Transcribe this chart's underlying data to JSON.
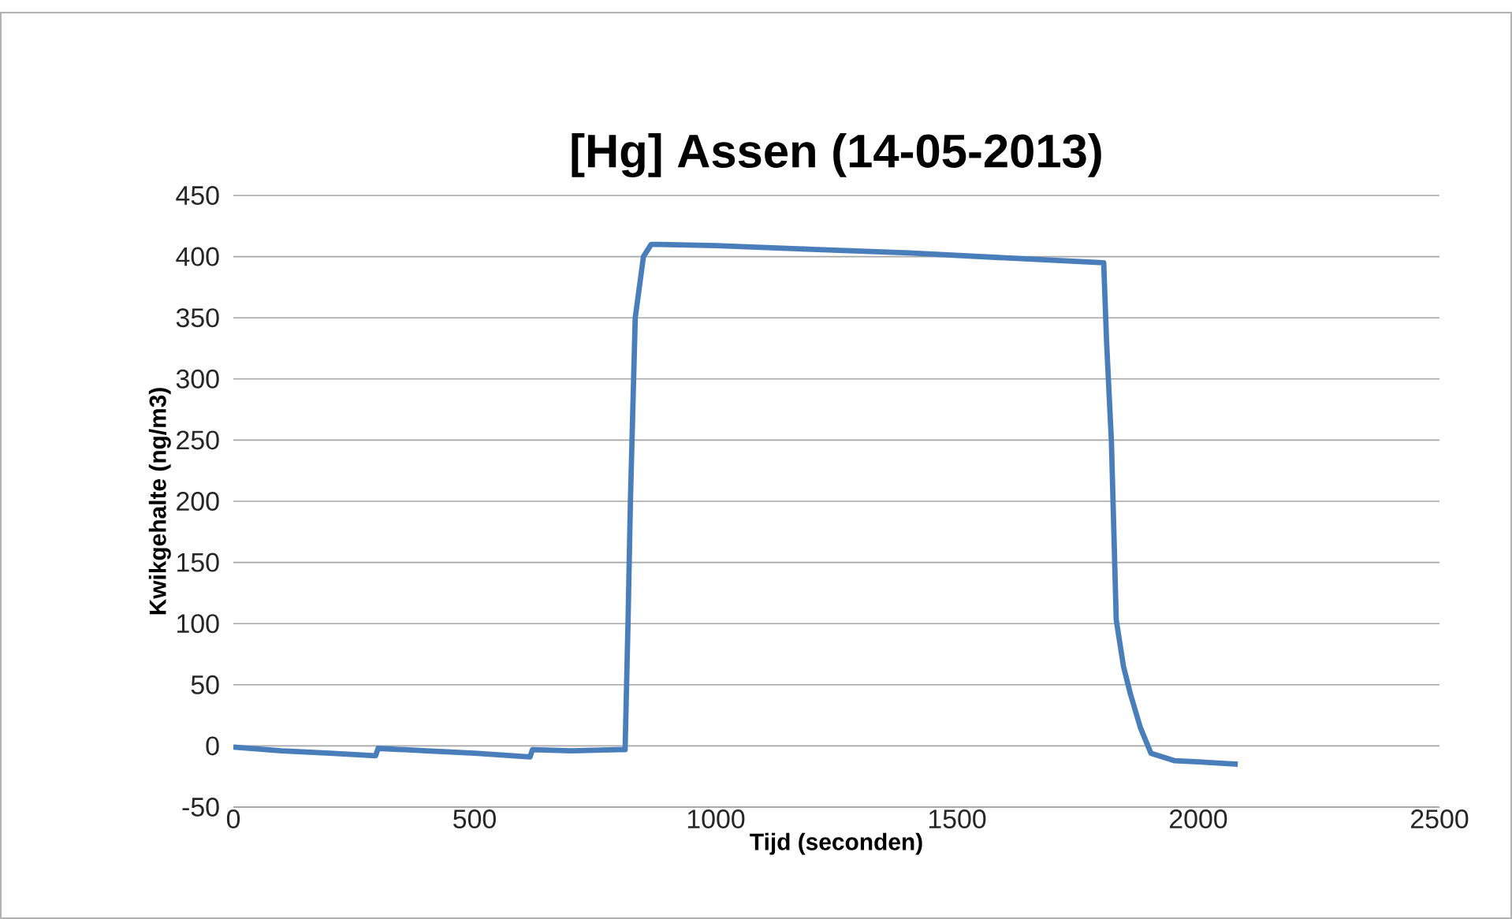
{
  "chart_data": {
    "type": "line",
    "title": "[Hg] Assen (14-05-2013)",
    "xlabel": "Tijd (seconden)",
    "ylabel": "Kwikgehalte (ng/m3)",
    "series": [
      {
        "color": "#4a7ebb",
        "x": [
          0,
          100,
          200,
          295,
          300,
          400,
          500,
          615,
          620,
          700,
          800,
          812,
          818,
          823,
          833,
          850,
          866,
          882,
          1000,
          1200,
          1400,
          1600,
          1804,
          1810,
          1820,
          1830,
          1845,
          1859,
          1880,
          1902,
          1950,
          2000,
          2082
        ],
        "values": [
          -1,
          -4,
          -6,
          -8,
          -2,
          -4,
          -6,
          -9,
          -3,
          -4,
          -3,
          -3,
          100,
          200,
          350,
          400,
          410,
          410,
          409,
          406,
          403,
          399,
          395,
          330,
          249,
          103,
          65,
          43,
          15,
          -6,
          -12,
          -13,
          -15
        ]
      }
    ],
    "xlim": [
      0,
      2500
    ],
    "xticks": [
      0,
      500,
      1000,
      1500,
      2000,
      2500
    ],
    "ylim": [
      -50,
      450
    ],
    "yticks": [
      -50,
      0,
      50,
      100,
      150,
      200,
      250,
      300,
      350,
      400,
      450
    ],
    "grid": "y",
    "marker": "none",
    "line_style": "solid"
  }
}
